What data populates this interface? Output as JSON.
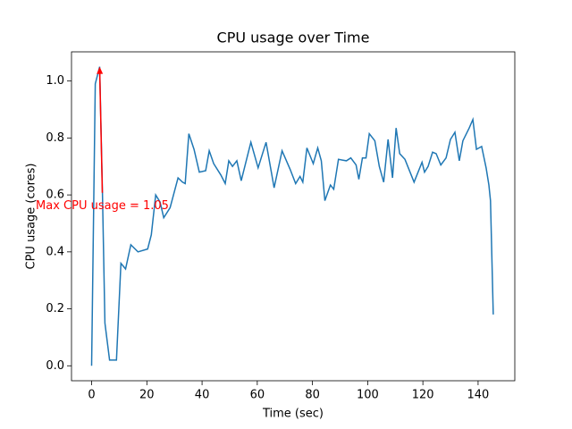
{
  "chart_data": {
    "type": "line",
    "title": "CPU usage over Time",
    "xlabel": "Time (sec)",
    "ylabel": "CPU usage (cores)",
    "x": [
      0,
      1.3,
      2.9,
      3.9,
      4.8,
      6.5,
      9,
      10.6,
      12.3,
      14.2,
      16.8,
      20.3,
      21.6,
      23.2,
      24.8,
      26.1,
      28.4,
      31.3,
      32.9,
      33.9,
      35.2,
      37.1,
      39,
      41.3,
      42.6,
      44.2,
      46.8,
      48.4,
      49.7,
      51,
      52.6,
      54.2,
      57.7,
      60.3,
      63.2,
      66.1,
      69,
      71.9,
      73.9,
      75.5,
      76.5,
      78,
      80.3,
      81.9,
      83.2,
      84.5,
      86.5,
      87.7,
      89.4,
      92.3,
      93.9,
      95.8,
      96.8,
      98.1,
      99.4,
      100.6,
      102.6,
      104.2,
      105.8,
      107.4,
      109,
      110.3,
      111.6,
      113.5,
      116.8,
      119.7,
      120.6,
      121.9,
      123.5,
      124.8,
      126.5,
      128.4,
      130,
      131.6,
      133.2,
      134.5,
      136.8,
      138.1,
      139.4,
      141.3,
      142.9,
      143.9,
      144.5,
      145.5
    ],
    "series": [
      {
        "name": "CPU usage",
        "color": "#1f77b4",
        "values": [
          0,
          0.99,
          1.05,
          0.61,
          0.15,
          0.02,
          0.02,
          0.36,
          0.34,
          0.425,
          0.4,
          0.41,
          0.46,
          0.6,
          0.575,
          0.52,
          0.555,
          0.66,
          0.645,
          0.64,
          0.815,
          0.76,
          0.68,
          0.685,
          0.755,
          0.71,
          0.67,
          0.64,
          0.72,
          0.7,
          0.72,
          0.65,
          0.785,
          0.695,
          0.785,
          0.625,
          0.755,
          0.69,
          0.64,
          0.665,
          0.645,
          0.765,
          0.71,
          0.765,
          0.72,
          0.58,
          0.635,
          0.62,
          0.725,
          0.72,
          0.73,
          0.705,
          0.655,
          0.73,
          0.73,
          0.815,
          0.79,
          0.7,
          0.645,
          0.795,
          0.66,
          0.835,
          0.745,
          0.725,
          0.645,
          0.715,
          0.68,
          0.7,
          0.75,
          0.745,
          0.705,
          0.73,
          0.795,
          0.82,
          0.72,
          0.79,
          0.835,
          0.865,
          0.76,
          0.77,
          0.695,
          0.635,
          0.58,
          0.18
        ]
      }
    ],
    "annotation": {
      "text": "Max CPU usage = 1.05",
      "x": 2.9,
      "y": 1.05,
      "color": "red"
    },
    "xlim": [
      -7.3,
      153.3
    ],
    "xticks": [
      0,
      20,
      40,
      60,
      80,
      100,
      120,
      140
    ],
    "ylim": [
      -0.0525,
      1.1025
    ],
    "yticks": [
      {
        "value": 0,
        "label": "0.0"
      },
      0.2,
      0.4,
      0.6,
      0.8,
      {
        "value": 1,
        "label": "1.0"
      }
    ]
  }
}
